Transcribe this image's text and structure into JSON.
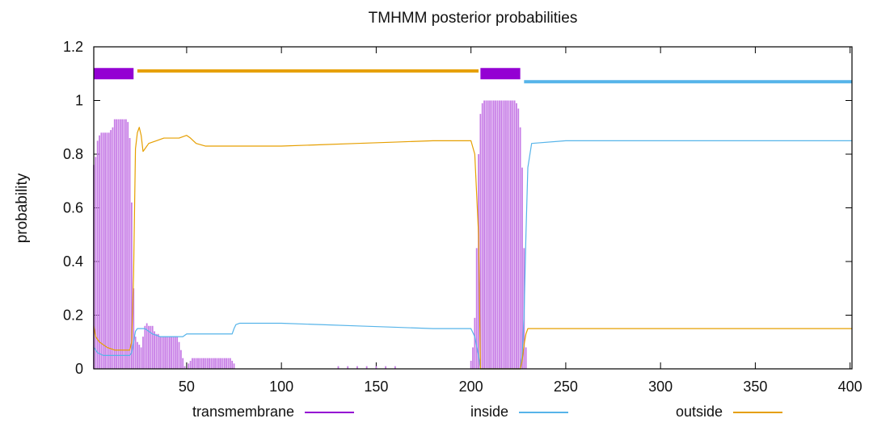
{
  "chart_data": {
    "type": "line",
    "title": "TMHMM posterior probabilities",
    "xlabel": "",
    "ylabel": "probability",
    "xlim": [
      1,
      401
    ],
    "ylim": [
      0,
      1.2
    ],
    "x_ticks": [
      {
        "value": 50,
        "label": "50"
      },
      {
        "value": 100,
        "label": "100"
      },
      {
        "value": 150,
        "label": "150"
      },
      {
        "value": 200,
        "label": "200"
      },
      {
        "value": 250,
        "label": "250"
      },
      {
        "value": 300,
        "label": "300"
      },
      {
        "value": 350,
        "label": "350"
      },
      {
        "value": 400,
        "label": "400"
      }
    ],
    "y_ticks": [
      {
        "value": 0,
        "label": "0"
      },
      {
        "value": 0.2,
        "label": "0.2"
      },
      {
        "value": 0.4,
        "label": "0.4"
      },
      {
        "value": 0.6,
        "label": "0.6"
      },
      {
        "value": 0.8,
        "label": "0.8"
      },
      {
        "value": 1,
        "label": "1"
      },
      {
        "value": 1.2,
        "label": "1.2"
      }
    ],
    "grid": false,
    "legend_position": "bottom",
    "colors": {
      "transmembrane": "#9400d3",
      "transmembrane_fill": "#c77de6",
      "inside": "#56b4e9",
      "outside": "#e69f00",
      "axis": "#000000"
    },
    "series": [
      {
        "name": "transmembrane",
        "style": "impulse",
        "x": [
          1,
          2,
          3,
          4,
          5,
          6,
          7,
          8,
          9,
          10,
          11,
          12,
          13,
          14,
          15,
          16,
          17,
          18,
          19,
          20,
          21,
          22,
          23,
          24,
          25,
          26,
          27,
          28,
          29,
          30,
          31,
          32,
          33,
          34,
          35,
          36,
          37,
          38,
          39,
          40,
          41,
          42,
          43,
          44,
          45,
          46,
          47,
          48,
          49,
          50,
          51,
          52,
          53,
          54,
          55,
          56,
          57,
          58,
          59,
          60,
          61,
          62,
          63,
          64,
          65,
          66,
          67,
          68,
          69,
          70,
          71,
          72,
          73,
          74,
          75,
          130,
          135,
          140,
          145,
          150,
          155,
          160,
          200,
          201,
          202,
          203,
          204,
          205,
          206,
          207,
          208,
          209,
          210,
          211,
          212,
          213,
          214,
          215,
          216,
          217,
          218,
          219,
          220,
          221,
          222,
          223,
          224,
          225,
          226,
          227,
          228,
          229
        ],
        "y": [
          0.76,
          0.79,
          0.85,
          0.87,
          0.88,
          0.88,
          0.88,
          0.88,
          0.88,
          0.89,
          0.9,
          0.93,
          0.93,
          0.93,
          0.93,
          0.93,
          0.93,
          0.93,
          0.92,
          0.86,
          0.62,
          0.3,
          0.12,
          0.1,
          0.09,
          0.08,
          0.12,
          0.16,
          0.17,
          0.16,
          0.16,
          0.16,
          0.14,
          0.13,
          0.13,
          0.12,
          0.12,
          0.12,
          0.12,
          0.12,
          0.12,
          0.12,
          0.12,
          0.12,
          0.12,
          0.1,
          0.07,
          0.04,
          0.01,
          0.0,
          0.02,
          0.03,
          0.04,
          0.04,
          0.04,
          0.04,
          0.04,
          0.04,
          0.04,
          0.04,
          0.04,
          0.04,
          0.04,
          0.04,
          0.04,
          0.04,
          0.04,
          0.04,
          0.04,
          0.04,
          0.04,
          0.04,
          0.04,
          0.03,
          0.02,
          0.01,
          0.01,
          0.01,
          0.01,
          0.01,
          0.01,
          0.01,
          0.03,
          0.08,
          0.19,
          0.45,
          0.8,
          0.95,
          0.99,
          1.0,
          1.0,
          1.0,
          1.0,
          1.0,
          1.0,
          1.0,
          1.0,
          1.0,
          1.0,
          1.0,
          1.0,
          1.0,
          1.0,
          1.0,
          1.0,
          1.0,
          0.99,
          0.97,
          0.9,
          0.75,
          0.45,
          0.08
        ]
      },
      {
        "name": "inside",
        "style": "line",
        "x": [
          1,
          3,
          6,
          10,
          14,
          18,
          20,
          21,
          22,
          23,
          24,
          26,
          28,
          30,
          32,
          36,
          40,
          44,
          48,
          50,
          55,
          60,
          65,
          70,
          74,
          75,
          76,
          78,
          85,
          100,
          120,
          140,
          160,
          180,
          200,
          202,
          204,
          205,
          206,
          210,
          220,
          226,
          227,
          228,
          229,
          230,
          232,
          250,
          300,
          350,
          400,
          401
        ],
        "y": [
          0.08,
          0.06,
          0.05,
          0.05,
          0.05,
          0.05,
          0.05,
          0.06,
          0.1,
          0.14,
          0.15,
          0.15,
          0.15,
          0.14,
          0.13,
          0.12,
          0.12,
          0.12,
          0.12,
          0.13,
          0.13,
          0.13,
          0.13,
          0.13,
          0.13,
          0.15,
          0.165,
          0.17,
          0.17,
          0.17,
          0.165,
          0.16,
          0.155,
          0.15,
          0.15,
          0.12,
          0.05,
          0.0,
          0.0,
          0.0,
          0.0,
          0.0,
          0.05,
          0.2,
          0.5,
          0.75,
          0.84,
          0.85,
          0.85,
          0.85,
          0.85,
          0.85
        ]
      },
      {
        "name": "outside",
        "style": "line",
        "x": [
          1,
          2,
          4,
          8,
          12,
          16,
          20,
          21,
          22,
          23,
          24,
          25,
          26,
          27,
          28,
          30,
          34,
          38,
          42,
          46,
          50,
          52,
          55,
          60,
          70,
          80,
          100,
          120,
          140,
          160,
          180,
          200,
          202,
          204,
          205,
          206,
          210,
          220,
          226,
          227,
          228,
          229,
          230,
          235,
          250,
          300,
          350,
          400,
          401
        ],
        "y": [
          0.16,
          0.12,
          0.1,
          0.08,
          0.07,
          0.07,
          0.07,
          0.1,
          0.35,
          0.82,
          0.88,
          0.9,
          0.87,
          0.81,
          0.82,
          0.84,
          0.85,
          0.86,
          0.86,
          0.86,
          0.87,
          0.86,
          0.84,
          0.83,
          0.83,
          0.83,
          0.83,
          0.835,
          0.84,
          0.845,
          0.85,
          0.85,
          0.8,
          0.5,
          0.0,
          0.0,
          0.0,
          0.0,
          0.0,
          0.03,
          0.09,
          0.13,
          0.15,
          0.15,
          0.15,
          0.15,
          0.15,
          0.15,
          0.15
        ]
      }
    ],
    "topology_bars": [
      {
        "series": "transmembrane",
        "start": 1,
        "end": 22,
        "level": 1.1
      },
      {
        "series": "outside",
        "start": 24,
        "end": 204,
        "level": 1.11
      },
      {
        "series": "transmembrane",
        "start": 205,
        "end": 226,
        "level": 1.1
      },
      {
        "series": "inside",
        "start": 228,
        "end": 401,
        "level": 1.07
      }
    ],
    "legend": [
      {
        "series": "transmembrane",
        "label": "transmembrane"
      },
      {
        "series": "inside",
        "label": "inside"
      },
      {
        "series": "outside",
        "label": "outside"
      }
    ]
  }
}
